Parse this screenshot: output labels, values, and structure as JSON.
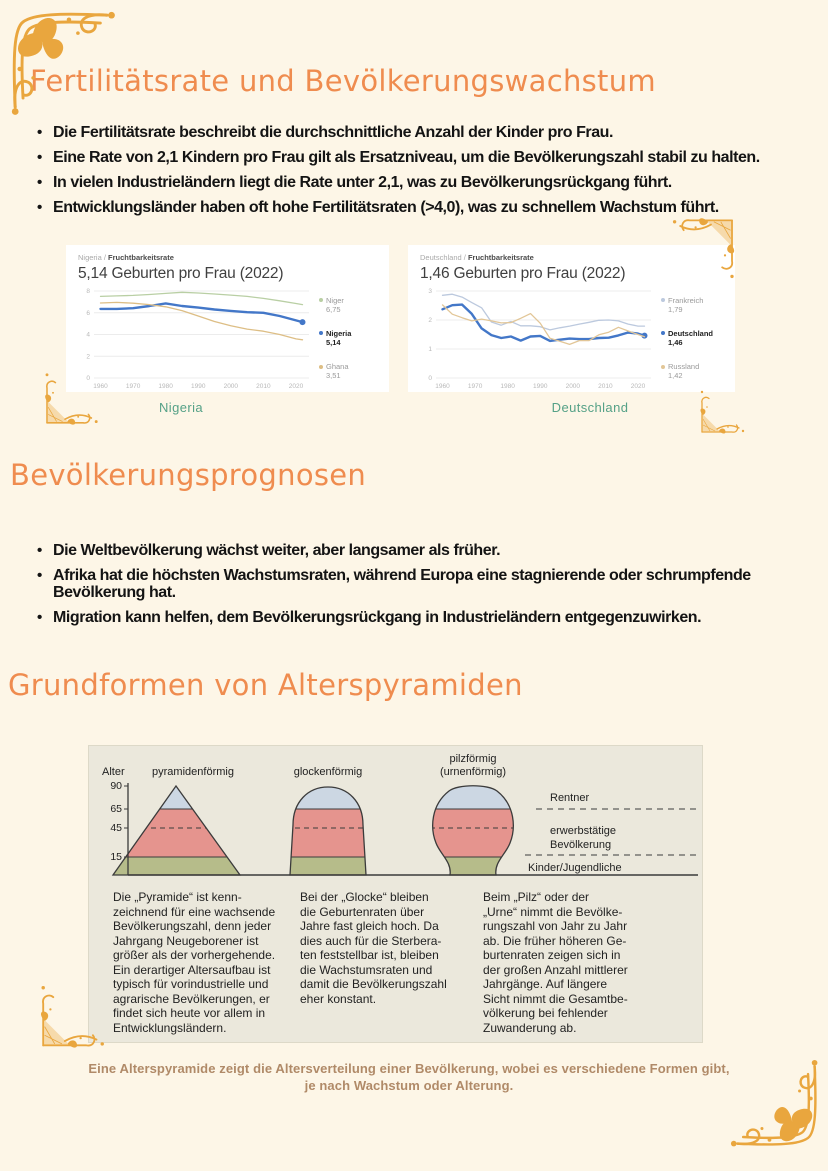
{
  "sections": {
    "s1": {
      "heading": "Fertilitätsrate und Bevölkerungswachstum",
      "bullets": [
        "Die Fertilitätsrate beschreibt die durchschnittliche Anzahl der Kinder pro Frau.",
        "Eine Rate von 2,1 Kindern pro Frau gilt als Ersatzniveau, um die Bevölkerungszahl stabil zu halten.",
        "In vielen Industrieländern liegt die Rate unter 2,1, was zu Bevölkerungsrückgang führt.",
        "Entwicklungsländer haben oft hohe Fertilitätsraten (>4,0), was zu schnellem Wachstum führt."
      ]
    },
    "s2": {
      "heading": "Bevölkerungsprognosen",
      "bullets": [
        "Die Weltbevölkerung wächst weiter, aber langsamer als früher.",
        "Afrika hat die höchsten Wachstumsraten, während Europa eine stagnierende oder schrumpfende Bevölkerung hat.",
        "Migration kann helfen, dem Bevölkerungsrückgang in Industrieländern entgegenzuwirken."
      ]
    },
    "s3": {
      "heading": "Grundformen von Alterspyramiden"
    }
  },
  "chart_captions": {
    "left": "Nigeria",
    "right": "Deutschland"
  },
  "chart_data": [
    {
      "type": "line",
      "breadcrumb": {
        "prefix": "Nigeria /",
        "label": "Fruchtbarkeitsrate"
      },
      "title": "5,14 Geburten pro Frau (2022)",
      "xlabel": "",
      "ylabel": "Geburten pro Frau",
      "x": [
        1960,
        1965,
        1970,
        1975,
        1980,
        1985,
        1990,
        1995,
        2000,
        2005,
        2010,
        2015,
        2020,
        2022
      ],
      "xlim": [
        1958,
        2024
      ],
      "ylim": [
        0,
        8
      ],
      "yticks": [
        0,
        2,
        4,
        6,
        8
      ],
      "xticks": [
        1960,
        1970,
        1980,
        1990,
        2000,
        2010,
        2020
      ],
      "grid": true,
      "legend_position": "right",
      "series": [
        {
          "name": "Niger",
          "value_label": "6,75",
          "color": "#b9cfa4",
          "values": [
            7.5,
            7.55,
            7.6,
            7.68,
            7.78,
            7.88,
            7.82,
            7.72,
            7.62,
            7.5,
            7.32,
            7.1,
            6.85,
            6.75
          ]
        },
        {
          "name": "Nigeria",
          "value_label": "5,14",
          "color": "#4377c8",
          "emphasis": true,
          "end_dot": true,
          "values": [
            6.35,
            6.35,
            6.42,
            6.62,
            6.86,
            6.62,
            6.47,
            6.3,
            6.17,
            6.05,
            6.0,
            5.7,
            5.3,
            5.14
          ]
        },
        {
          "name": "Ghana",
          "value_label": "3,51",
          "color": "#ddbe85",
          "values": [
            6.9,
            6.95,
            6.88,
            6.75,
            6.55,
            6.2,
            5.7,
            5.2,
            4.8,
            4.5,
            4.3,
            4.0,
            3.6,
            3.51
          ]
        }
      ]
    },
    {
      "type": "line",
      "breadcrumb": {
        "prefix": "Deutschland /",
        "label": "Fruchtbarkeitsrate"
      },
      "title": "1,46 Geburten pro Frau (2022)",
      "xlabel": "",
      "ylabel": "Geburten pro Frau",
      "x": [
        1960,
        1963,
        1966,
        1969,
        1972,
        1975,
        1978,
        1981,
        1984,
        1987,
        1990,
        1993,
        1996,
        1999,
        2002,
        2005,
        2008,
        2011,
        2014,
        2017,
        2020,
        2022
      ],
      "xlim": [
        1958,
        2024
      ],
      "ylim": [
        0,
        3
      ],
      "yticks": [
        0,
        1,
        2,
        3
      ],
      "xticks": [
        1960,
        1970,
        1980,
        1990,
        2000,
        2010,
        2020
      ],
      "grid": true,
      "legend_position": "right",
      "series": [
        {
          "name": "Frankreich",
          "value_label": "1,79",
          "color": "#bcc9de",
          "values": [
            2.85,
            2.89,
            2.79,
            2.6,
            2.42,
            1.93,
            1.82,
            1.95,
            1.8,
            1.8,
            1.77,
            1.66,
            1.73,
            1.79,
            1.86,
            1.92,
            1.99,
            2.0,
            1.97,
            1.86,
            1.79,
            1.79
          ]
        },
        {
          "name": "Deutschland",
          "value_label": "1,46",
          "color": "#4377c8",
          "emphasis": true,
          "end_dot": true,
          "values": [
            2.37,
            2.51,
            2.53,
            2.21,
            1.71,
            1.48,
            1.38,
            1.43,
            1.29,
            1.43,
            1.45,
            1.28,
            1.32,
            1.36,
            1.34,
            1.34,
            1.38,
            1.39,
            1.47,
            1.57,
            1.53,
            1.46
          ]
        },
        {
          "name": "Russland",
          "value_label": "1,42",
          "color": "#e2c697",
          "values": [
            2.52,
            2.2,
            2.08,
            1.97,
            2.03,
            1.97,
            1.9,
            1.91,
            2.06,
            2.22,
            1.89,
            1.37,
            1.27,
            1.16,
            1.29,
            1.29,
            1.49,
            1.58,
            1.75,
            1.62,
            1.5,
            1.42
          ]
        }
      ]
    }
  ],
  "pyramid": {
    "axis_label": "Alter",
    "ticks": {
      "t90": "90",
      "t65": "65",
      "t45": "45",
      "t15": "15"
    },
    "shapes": {
      "pyramid": "pyramidenförmig",
      "bell": "glockenförmig",
      "mushroom1": "pilzförmig",
      "mushroom2": "(urnenförmig)"
    },
    "zones": {
      "rentner": "Rentner",
      "erwerb1": "erwerbstätige",
      "erwerb2": "Bevölkerung",
      "kinder": "Kinder/Jugendliche"
    },
    "colors": {
      "rentner": "#ccd7e3",
      "erwerb": "#e5948e",
      "kinder": "#b6bc8a"
    },
    "columns": [
      "Die „Pyramide“ ist kenn-\nzeichnend für eine wachsende\nBevölkerungszahl, denn jeder\nJahrgang Neugeborener ist\ngrößer als der vorhergehende.\nEin derartiger Altersaufbau ist\ntypisch für vorindustrielle und\nagrarische Bevölkerungen, er\nfindet sich heute vor allem in\nEntwicklungsländern.",
      "Bei der „Glocke“ bleiben\ndie Geburtenraten über\nJahre fast gleich hoch. Da\ndies auch für die Sterbera-\nten feststellbar ist, bleiben\ndie Wachstumsraten und\ndamit die Bevölkerungszahl\neher konstant.",
      "Beim „Pilz“ oder der\n„Urne“ nimmt die Bevölke-\nrungszahl von Jahr zu Jahr\nab. Die früher höheren Ge-\nburtenraten zeigen sich in\nder großen Anzahl mittlerer\nJahrgänge. Auf längere\nSicht nimmt die Gesamtbe-\nvölkerung bei fehlender\nZuwanderung ab."
    ]
  },
  "bottom_caption": "Eine Alterspyramide zeigt die Altersverteilung einer Bevölkerung, wobei es verschiedene Formen gibt, je nach Wachstum oder Alterung.",
  "colors": {
    "accent_orange": "#ef8c4f",
    "caption_green": "#55a187",
    "caption_brown": "#b08a68",
    "ornament_gold": "#e9a63e",
    "page_bg": "#fdf6e7"
  }
}
